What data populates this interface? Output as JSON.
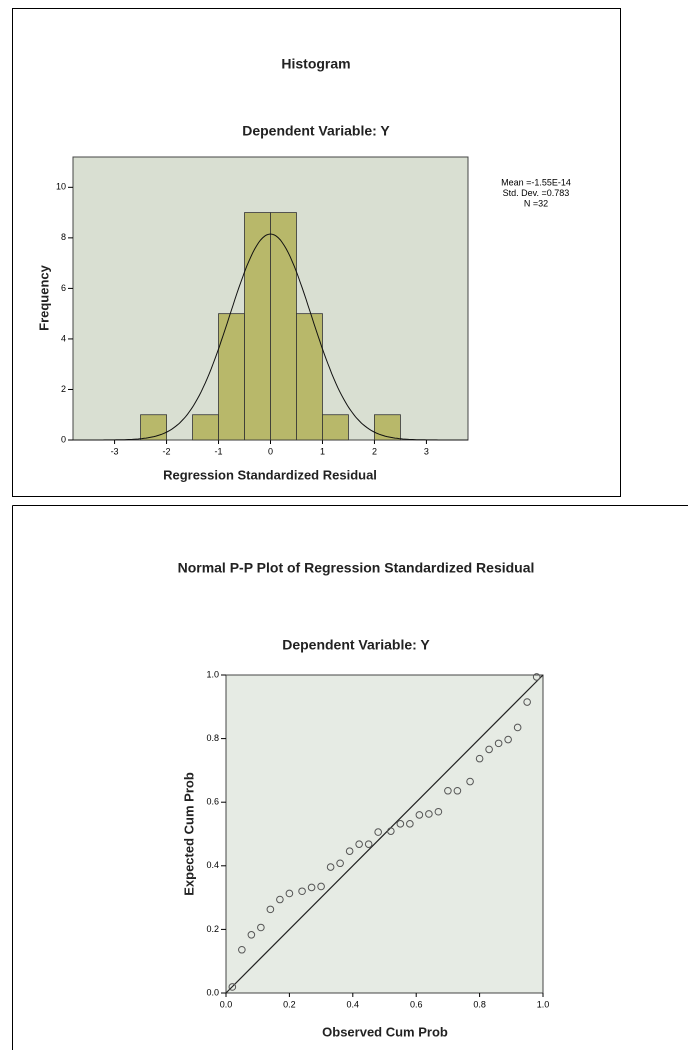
{
  "chart_data": [
    {
      "type": "histogram",
      "title": "Histogram",
      "subtitle": "Dependent Variable: Y",
      "x_label": "Regression Standardized Residual",
      "y_label": "Frequency",
      "bins": [
        -2.5,
        -2,
        -1.5,
        -1,
        -0.5,
        0,
        0.5,
        1,
        1.5,
        2,
        2.5
      ],
      "values": [
        1,
        0,
        1,
        5,
        9,
        9,
        5,
        1,
        0,
        1
      ],
      "color": "#b8b86a",
      "xlim": [
        -3.8,
        3.8
      ],
      "ylim": [
        0,
        11.2
      ],
      "xticks": [
        -3,
        -2,
        -1,
        0,
        1,
        2,
        3
      ],
      "yticks": [
        0,
        2,
        4,
        6,
        8,
        10
      ],
      "stats": [
        {
          "value": -1.55e-14,
          "label": "Mean =-1.55E-14"
        },
        {
          "value": 0.783,
          "label": "Std. Dev. =0.783"
        },
        {
          "value": 32,
          "label": "N =32"
        }
      ]
    },
    {
      "type": "scatter",
      "title": "Normal P-P Plot of Regression Standardized Residual",
      "subtitle": "Dependent Variable: Y",
      "x_label": "Observed Cum Prob",
      "y_label": "Expected Cum Prob",
      "x": [
        0.02,
        0.05,
        0.08,
        0.11,
        0.14,
        0.17,
        0.2,
        0.24,
        0.27,
        0.3,
        0.33,
        0.36,
        0.39,
        0.42,
        0.45,
        0.48,
        0.52,
        0.55,
        0.58,
        0.61,
        0.64,
        0.67,
        0.7,
        0.73,
        0.77,
        0.8,
        0.83,
        0.86,
        0.89,
        0.92,
        0.95,
        0.98
      ],
      "values": [
        0.019,
        0.136,
        0.183,
        0.206,
        0.263,
        0.294,
        0.313,
        0.32,
        0.332,
        0.335,
        0.396,
        0.408,
        0.446,
        0.468,
        0.468,
        0.506,
        0.509,
        0.532,
        0.532,
        0.56,
        0.563,
        0.57,
        0.636,
        0.636,
        0.665,
        0.737,
        0.766,
        0.785,
        0.797,
        0.835,
        0.915,
        0.994
      ],
      "color": "#555555",
      "xlim": [
        0,
        1
      ],
      "ylim": [
        0,
        1
      ],
      "xticks": [
        {
          "value": 0,
          "label": "0.0"
        },
        0.2,
        0.4,
        0.6,
        0.8,
        {
          "value": 1,
          "label": "1.0"
        }
      ],
      "yticks": [
        {
          "value": 0,
          "label": "0.0"
        },
        0.2,
        0.4,
        0.6,
        0.8,
        {
          "value": 1,
          "label": "1.0"
        }
      ]
    }
  ]
}
